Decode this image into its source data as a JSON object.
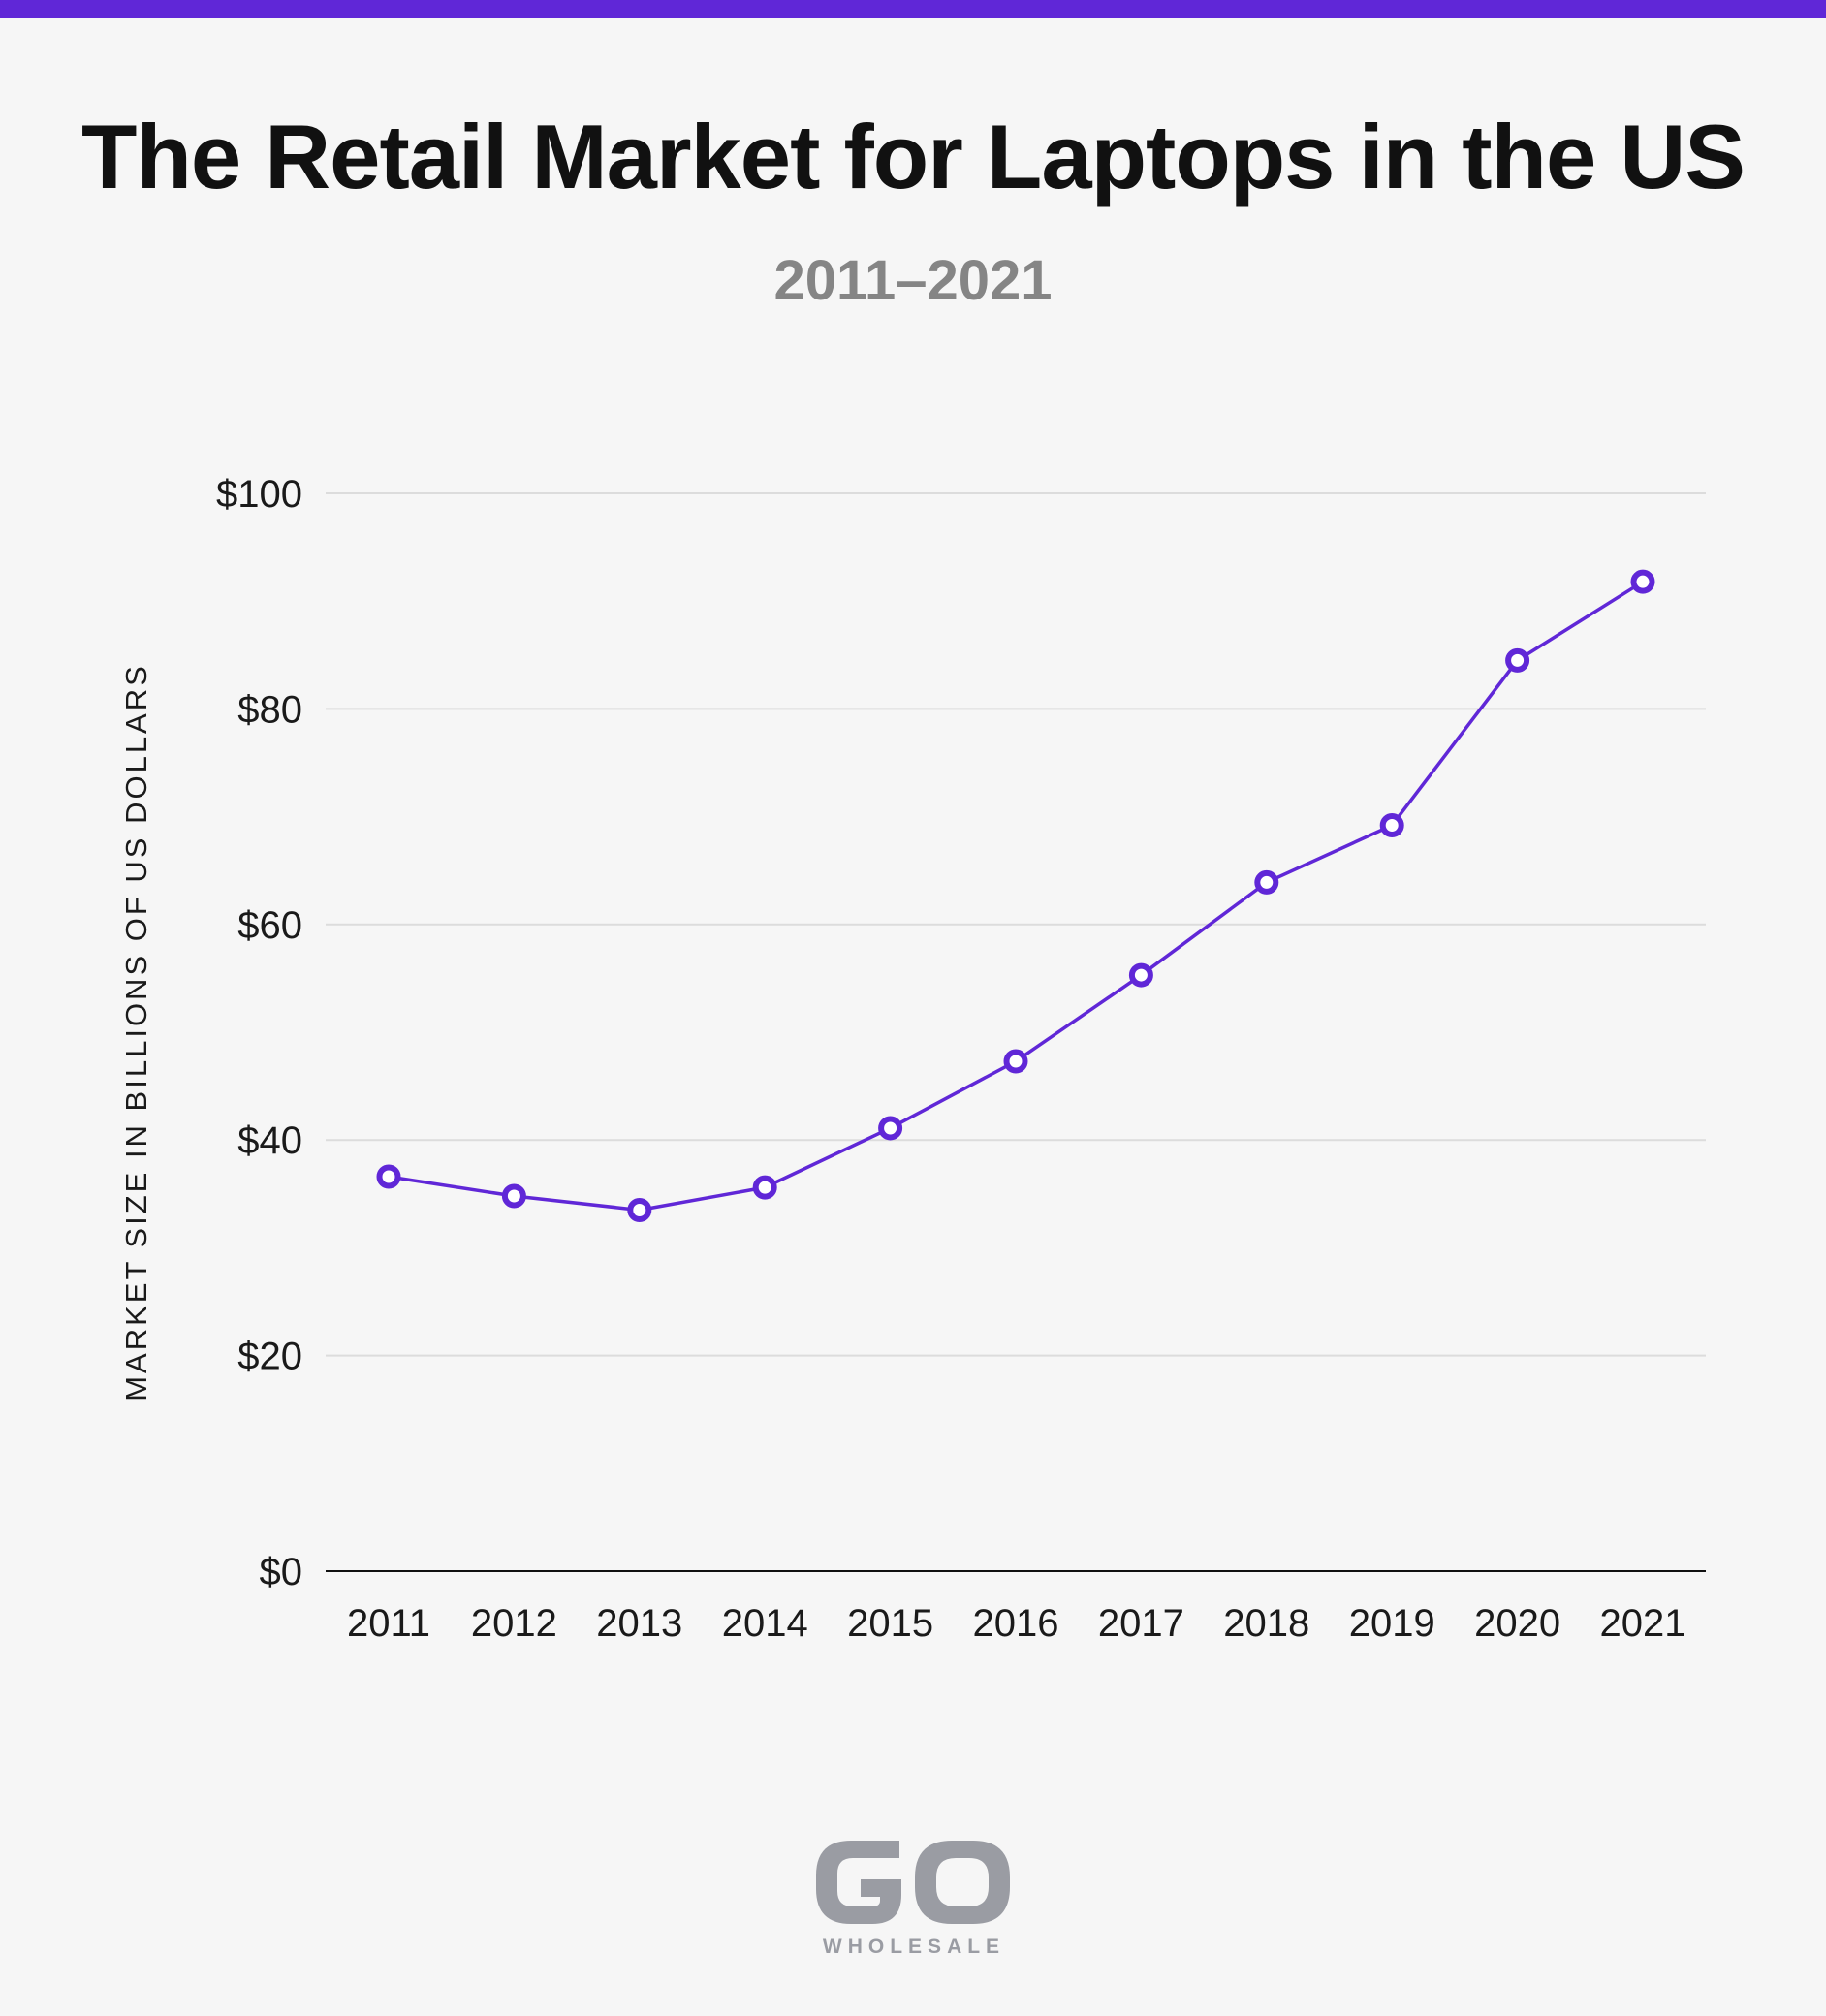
{
  "header": {
    "title": "The Retail Market for Laptops in the US",
    "subtitle": "2011–2021"
  },
  "colors": {
    "accent": "#6027d7",
    "background": "#f6f6f6",
    "logo": "#9a9ca3"
  },
  "logo": {
    "brand": "GO",
    "tagline": "WHOLESALE"
  },
  "chart_data": {
    "type": "line",
    "title": "The Retail Market for Laptops in the US",
    "subtitle": "2011–2021",
    "xlabel": "",
    "ylabel": "MARKET SIZE IN BILLIONS OF US DOLLARS",
    "categories": [
      "2011",
      "2012",
      "2013",
      "2014",
      "2015",
      "2016",
      "2017",
      "2018",
      "2019",
      "2020",
      "2021"
    ],
    "series": [
      {
        "values": [
          36.6,
          34.8,
          33.5,
          35.6,
          41.1,
          47.3,
          55.3,
          63.9,
          69.2,
          84.5,
          91.8
        ],
        "color": "#6027d7"
      }
    ],
    "ylim": [
      0,
      100
    ],
    "yticks": [
      0,
      20,
      40,
      60,
      80,
      100
    ],
    "ytick_labels": [
      "$0",
      "$20",
      "$40",
      "$60",
      "$80",
      "$100"
    ],
    "grid": true,
    "legend": false,
    "marker": "hollow-circle"
  }
}
